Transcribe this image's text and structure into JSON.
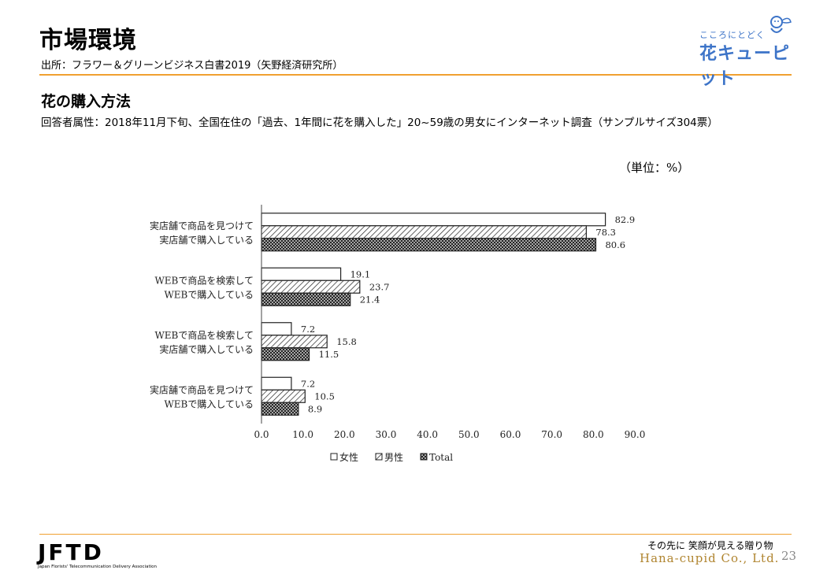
{
  "header": {
    "title": "市場環境",
    "source": "出所：フラワー＆グリーンビジネス白書2019（矢野経済研究所）"
  },
  "brand": {
    "tagline": "こころにとどく",
    "name": "花キューピット",
    "color": "#3d74c8"
  },
  "section": {
    "heading": "花の購入方法",
    "respondent": "回答者属性：2018年11月下旬、全国在住の「過去、1年間に花を購入した」20~59歳の男女にインターネット調査（サンプルサイズ304票）"
  },
  "unit_label": "（単位：%）",
  "chart_data": {
    "type": "bar",
    "orientation": "horizontal",
    "categories": [
      [
        "実店舗で商品を見つけて",
        "実店舗で購入している"
      ],
      [
        "WEBで商品を検索して",
        "WEBで購入している"
      ],
      [
        "WEBで商品を検索して",
        "実店舗で購入している"
      ],
      [
        "実店舗で商品を見つけて",
        "WEBで購入している"
      ]
    ],
    "series": [
      {
        "name": "女性",
        "pattern": "none",
        "values": [
          82.9,
          19.1,
          7.2,
          7.2
        ]
      },
      {
        "name": "男性",
        "pattern": "hatch",
        "values": [
          78.3,
          23.7,
          15.8,
          10.5
        ]
      },
      {
        "name": "Total",
        "pattern": "crosshatch",
        "values": [
          80.6,
          21.4,
          11.5,
          8.9
        ]
      }
    ],
    "xlim": [
      0,
      90
    ],
    "xticks": [
      "0.0",
      "10.0",
      "20.0",
      "30.0",
      "40.0",
      "50.0",
      "60.0",
      "70.0",
      "80.0",
      "90.0"
    ],
    "grid": false,
    "legend": "bottom"
  },
  "footer": {
    "logo": "JFTD",
    "association": "Japan Florists' Telecommunication Delivery Association",
    "tagline": "その先に 笑顔が見える贈り物",
    "company": "Hana-cupid Co., Ltd.",
    "page": "23",
    "accent": "#f0a030"
  }
}
